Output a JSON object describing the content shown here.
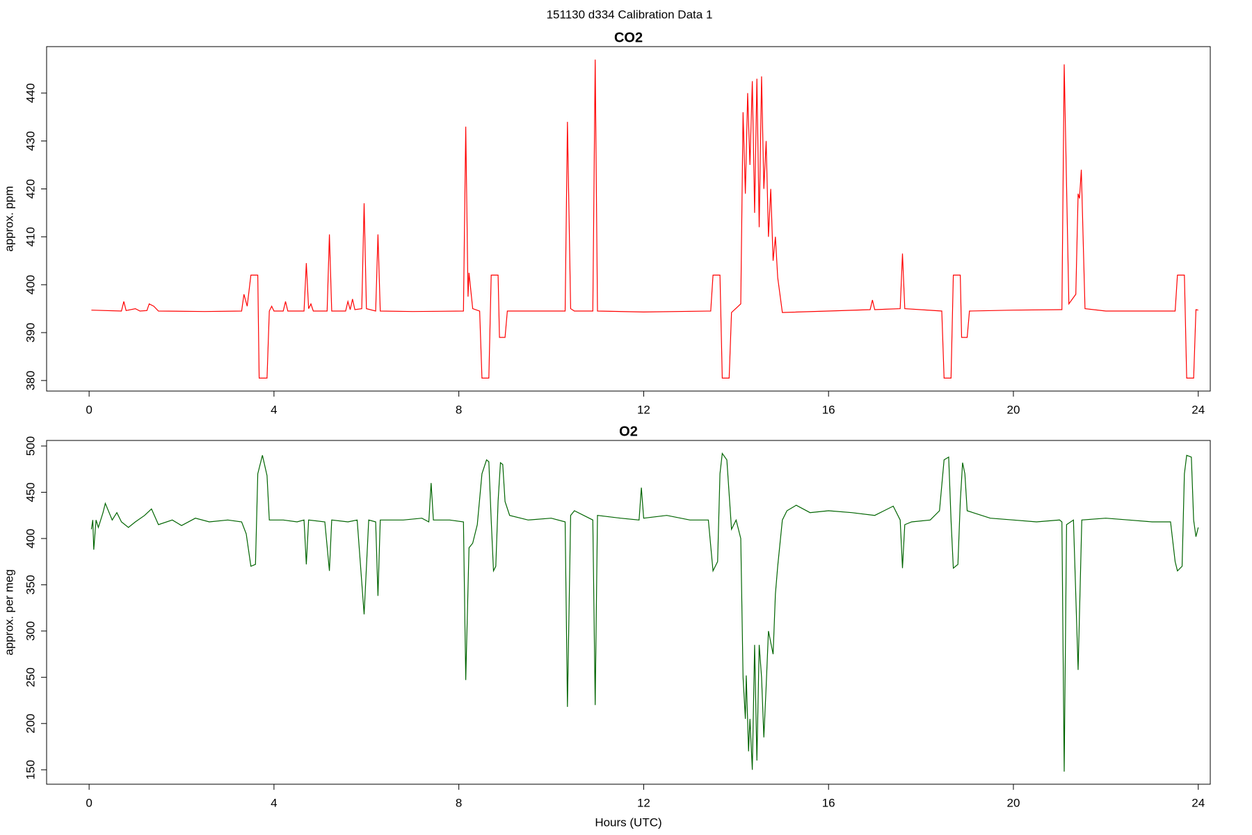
{
  "title": "151130   d334   Calibration Data 1",
  "chart_data": [
    {
      "type": "line",
      "title": "CO2",
      "y_label": "approx. ppm",
      "xlim": [
        -0.92,
        24.26
      ],
      "xticks": [
        0,
        4,
        8,
        12,
        16,
        20,
        24
      ],
      "ylim": [
        377.8,
        449.7
      ],
      "yticks": [
        380,
        390,
        400,
        410,
        420,
        430,
        440
      ],
      "series": [
        {
          "name": "CO2",
          "color": "#ff0000",
          "x": [
            0.05,
            0.7,
            0.75,
            0.8,
            1.0,
            1.1,
            1.25,
            1.3,
            1.4,
            1.5,
            2.5,
            3.3,
            3.35,
            3.42,
            3.5,
            3.65,
            3.68,
            3.85,
            3.9,
            3.95,
            4.0,
            4.2,
            4.25,
            4.3,
            4.65,
            4.7,
            4.75,
            4.8,
            4.85,
            5.15,
            5.2,
            5.25,
            5.55,
            5.6,
            5.65,
            5.7,
            5.75,
            5.9,
            5.95,
            6.0,
            6.2,
            6.25,
            6.3,
            7.0,
            8.1,
            8.15,
            8.2,
            8.22,
            8.3,
            8.45,
            8.5,
            8.65,
            8.7,
            8.85,
            8.88,
            9.0,
            9.05,
            10.3,
            10.35,
            10.42,
            10.5,
            10.9,
            10.95,
            11.0,
            12,
            13.45,
            13.5,
            13.65,
            13.7,
            13.85,
            13.9,
            14.1,
            14.15,
            14.2,
            14.25,
            14.3,
            14.35,
            14.4,
            14.45,
            14.5,
            14.55,
            14.6,
            14.65,
            14.7,
            14.75,
            14.8,
            14.85,
            14.9,
            15.0,
            16,
            16.9,
            16.95,
            17.0,
            17.55,
            17.6,
            17.65,
            18.45,
            18.5,
            18.65,
            18.7,
            18.85,
            18.88,
            19.0,
            19.05,
            20,
            21.05,
            21.1,
            21.2,
            21.35,
            21.4,
            21.43,
            21.47,
            21.55,
            22,
            23.5,
            23.55,
            23.7,
            23.75,
            23.9,
            23.95,
            24.0
          ],
          "values": [
            394.7,
            394.5,
            396.5,
            394.6,
            395,
            394.5,
            394.6,
            396,
            395.5,
            394.5,
            394.4,
            394.5,
            398,
            395.5,
            402,
            402,
            380.5,
            380.5,
            394.5,
            395.5,
            394.5,
            394.5,
            396.5,
            394.5,
            394.5,
            404.5,
            395,
            396,
            394.5,
            394.5,
            410.5,
            394.5,
            394.5,
            396.5,
            394.8,
            397,
            394.8,
            395,
            417,
            395,
            394.5,
            410.5,
            394.5,
            394.4,
            394.5,
            433,
            397.5,
            402.5,
            395,
            394.5,
            380.5,
            380.5,
            402,
            402,
            389,
            389,
            394.5,
            394.5,
            434,
            395,
            394.5,
            394.5,
            447,
            394.5,
            394.3,
            394.5,
            402,
            402,
            380.5,
            380.5,
            394.2,
            396,
            436,
            419,
            440,
            425,
            442.5,
            415,
            443,
            412,
            443.5,
            420,
            430,
            410,
            420,
            405,
            410,
            401.5,
            394.2,
            394.5,
            394.8,
            396.8,
            394.8,
            395,
            406.5,
            395,
            394.5,
            380.5,
            380.5,
            402,
            402,
            389,
            389,
            394.5,
            394.7,
            394.8,
            446,
            396,
            398,
            419,
            418,
            424,
            395,
            394.5,
            394.5,
            402,
            402,
            380.5,
            380.5,
            394.8,
            394.7
          ]
        }
      ]
    },
    {
      "type": "line",
      "title": "O2",
      "y_label": "approx. per meg",
      "x_label": "Hours (UTC)",
      "xlim": [
        -0.92,
        24.26
      ],
      "xticks": [
        0,
        4,
        8,
        12,
        16,
        20,
        24
      ],
      "ylim": [
        134.4,
        506
      ],
      "yticks": [
        150,
        200,
        250,
        300,
        350,
        400,
        450,
        500
      ],
      "series": [
        {
          "name": "O2",
          "color": "#006400",
          "x": [
            0.05,
            0.08,
            0.1,
            0.15,
            0.2,
            0.3,
            0.35,
            0.5,
            0.6,
            0.7,
            0.85,
            1.0,
            1.2,
            1.35,
            1.5,
            1.8,
            2.0,
            2.3,
            2.6,
            3.0,
            3.3,
            3.4,
            3.5,
            3.6,
            3.65,
            3.75,
            3.85,
            3.9,
            4.2,
            4.5,
            4.65,
            4.7,
            4.75,
            5.1,
            5.2,
            5.25,
            5.6,
            5.8,
            5.95,
            6.05,
            6.2,
            6.25,
            6.3,
            6.8,
            7.2,
            7.35,
            7.4,
            7.45,
            7.8,
            8.1,
            8.15,
            8.22,
            8.3,
            8.4,
            8.5,
            8.6,
            8.65,
            8.7,
            8.75,
            8.8,
            8.85,
            8.9,
            8.95,
            9.0,
            9.1,
            9.5,
            10.0,
            10.3,
            10.35,
            10.42,
            10.5,
            10.9,
            10.95,
            11.0,
            11.5,
            11.9,
            11.95,
            12.0,
            12.5,
            13.0,
            13.4,
            13.5,
            13.6,
            13.65,
            13.7,
            13.8,
            13.9,
            14.0,
            14.1,
            14.15,
            14.2,
            14.22,
            14.27,
            14.3,
            14.35,
            14.4,
            14.45,
            14.5,
            14.55,
            14.6,
            14.65,
            14.7,
            14.8,
            14.85,
            14.9,
            15.0,
            15.1,
            15.3,
            15.6,
            16.0,
            16.5,
            17.0,
            17.4,
            17.55,
            17.6,
            17.65,
            17.8,
            18.2,
            18.4,
            18.5,
            18.6,
            18.65,
            18.7,
            18.8,
            18.85,
            18.9,
            18.95,
            19.0,
            19.5,
            20.0,
            20.5,
            21.0,
            21.05,
            21.1,
            21.15,
            21.3,
            21.4,
            21.48,
            22.0,
            22.5,
            23.0,
            23.4,
            23.5,
            23.55,
            23.65,
            23.7,
            23.75,
            23.85,
            23.9,
            23.95,
            24.0
          ],
          "values": [
            410,
            420,
            388,
            420,
            412,
            428,
            438,
            420,
            428,
            418,
            412,
            418,
            425,
            432,
            415,
            420,
            414,
            422,
            418,
            420,
            418,
            405,
            370,
            372,
            470,
            490,
            468,
            420,
            420,
            418,
            420,
            372,
            420,
            418,
            365,
            420,
            418,
            420,
            318,
            420,
            418,
            338,
            420,
            420,
            422,
            418,
            460,
            420,
            420,
            418,
            247,
            390,
            395,
            415,
            470,
            485,
            483,
            420,
            365,
            370,
            440,
            482,
            480,
            440,
            425,
            420,
            422,
            418,
            218,
            425,
            430,
            420,
            220,
            425,
            422,
            420,
            455,
            422,
            425,
            420,
            420,
            365,
            375,
            470,
            492,
            485,
            410,
            420,
            400,
            250,
            205,
            252,
            170,
            205,
            150,
            285,
            160,
            285,
            250,
            185,
            240,
            300,
            275,
            340,
            370,
            420,
            430,
            436,
            428,
            430,
            428,
            425,
            435,
            420,
            368,
            415,
            418,
            420,
            430,
            485,
            488,
            420,
            368,
            372,
            440,
            482,
            470,
            430,
            422,
            420,
            418,
            420,
            418,
            148,
            415,
            420,
            258,
            420,
            422,
            420,
            418,
            418,
            375,
            365,
            370,
            470,
            490,
            488,
            420,
            402,
            412
          ]
        }
      ]
    }
  ]
}
